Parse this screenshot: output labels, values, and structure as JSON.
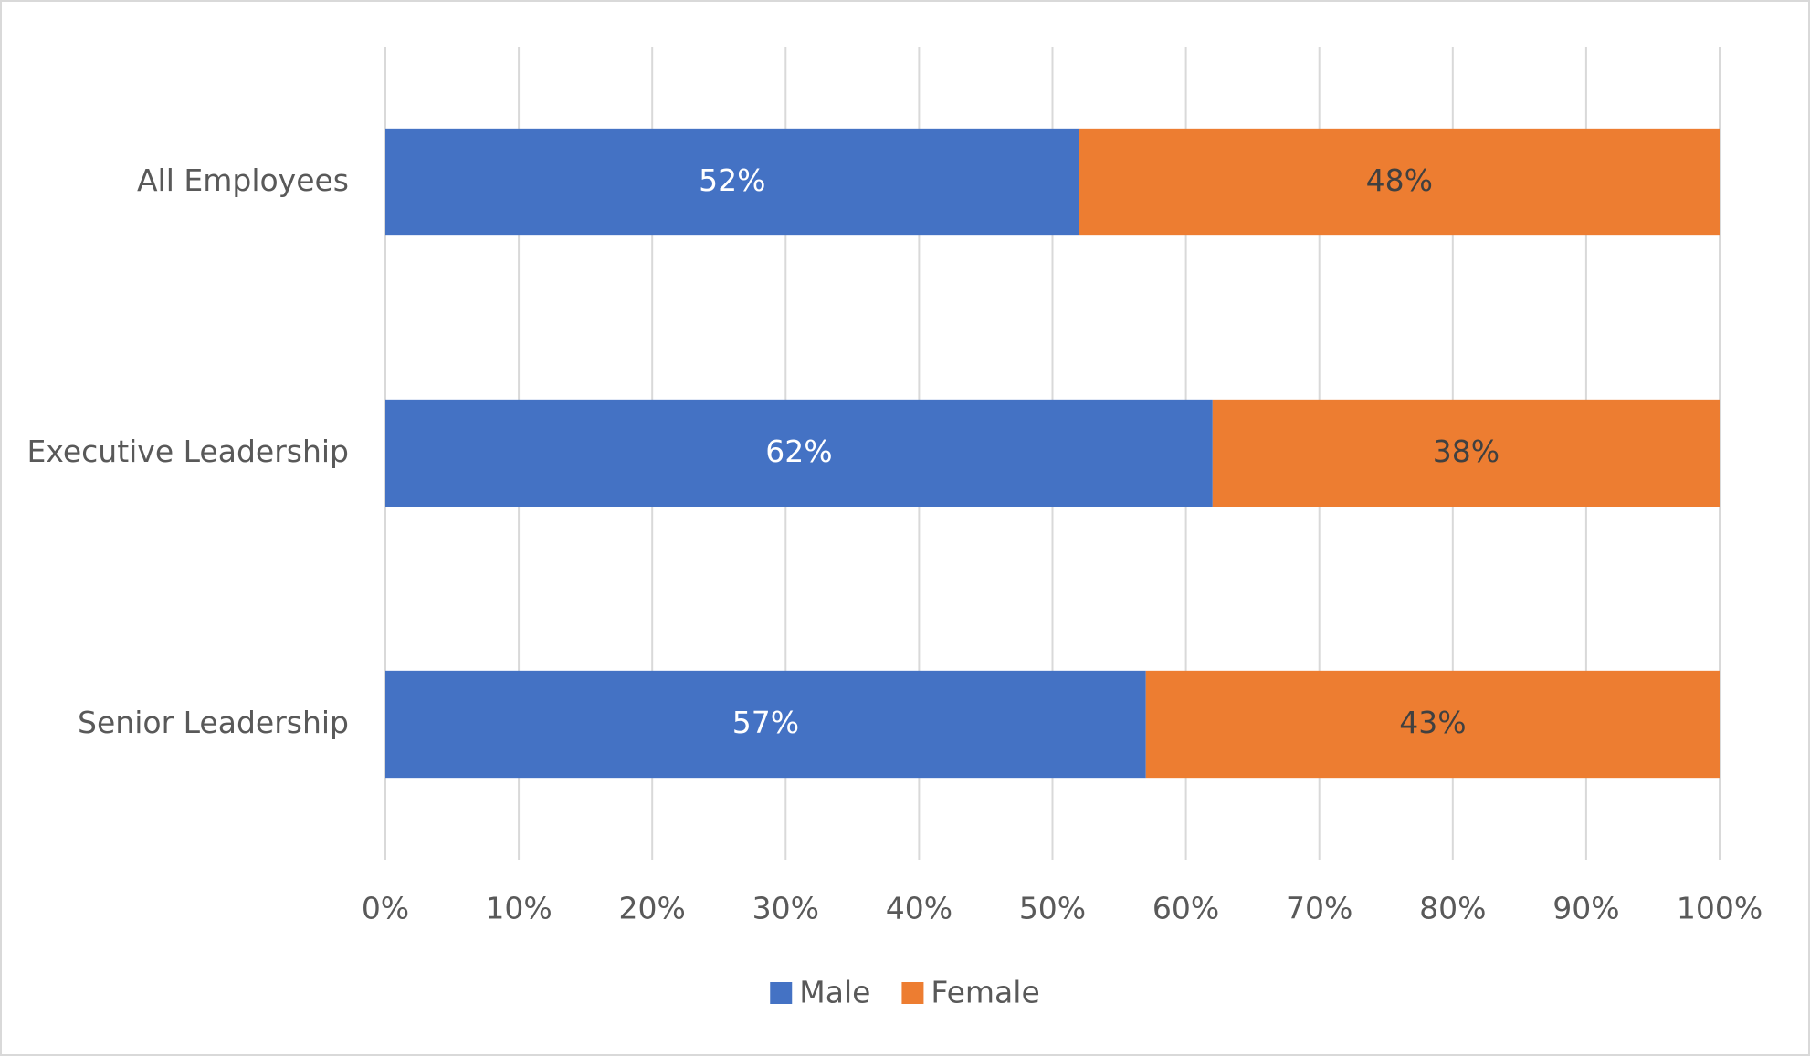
{
  "chart_data": {
    "type": "stacked-bar-horizontal",
    "categories": [
      "All Employees",
      "Executive Leadership",
      "Senior Leadership"
    ],
    "series": [
      {
        "name": "Male",
        "color": "#4472c4",
        "values": [
          52,
          62,
          57
        ],
        "value_labels": [
          "52%",
          "62%",
          "57%"
        ]
      },
      {
        "name": "Female",
        "color": "#ed7d31",
        "values": [
          48,
          38,
          43
        ],
        "value_labels": [
          "48%",
          "38%",
          "43%"
        ]
      }
    ],
    "xlim": [
      0,
      100
    ],
    "xticks": [
      {
        "value": 0,
        "label": "0%"
      },
      {
        "value": 10,
        "label": "10%"
      },
      {
        "value": 20,
        "label": "20%"
      },
      {
        "value": 30,
        "label": "30%"
      },
      {
        "value": 40,
        "label": "40%"
      },
      {
        "value": 50,
        "label": "50%"
      },
      {
        "value": 60,
        "label": "60%"
      },
      {
        "value": 70,
        "label": "70%"
      },
      {
        "value": 80,
        "label": "80%"
      },
      {
        "value": 90,
        "label": "90%"
      },
      {
        "value": 100,
        "label": "100%"
      }
    ],
    "grid": true,
    "legend": "bottom"
  }
}
